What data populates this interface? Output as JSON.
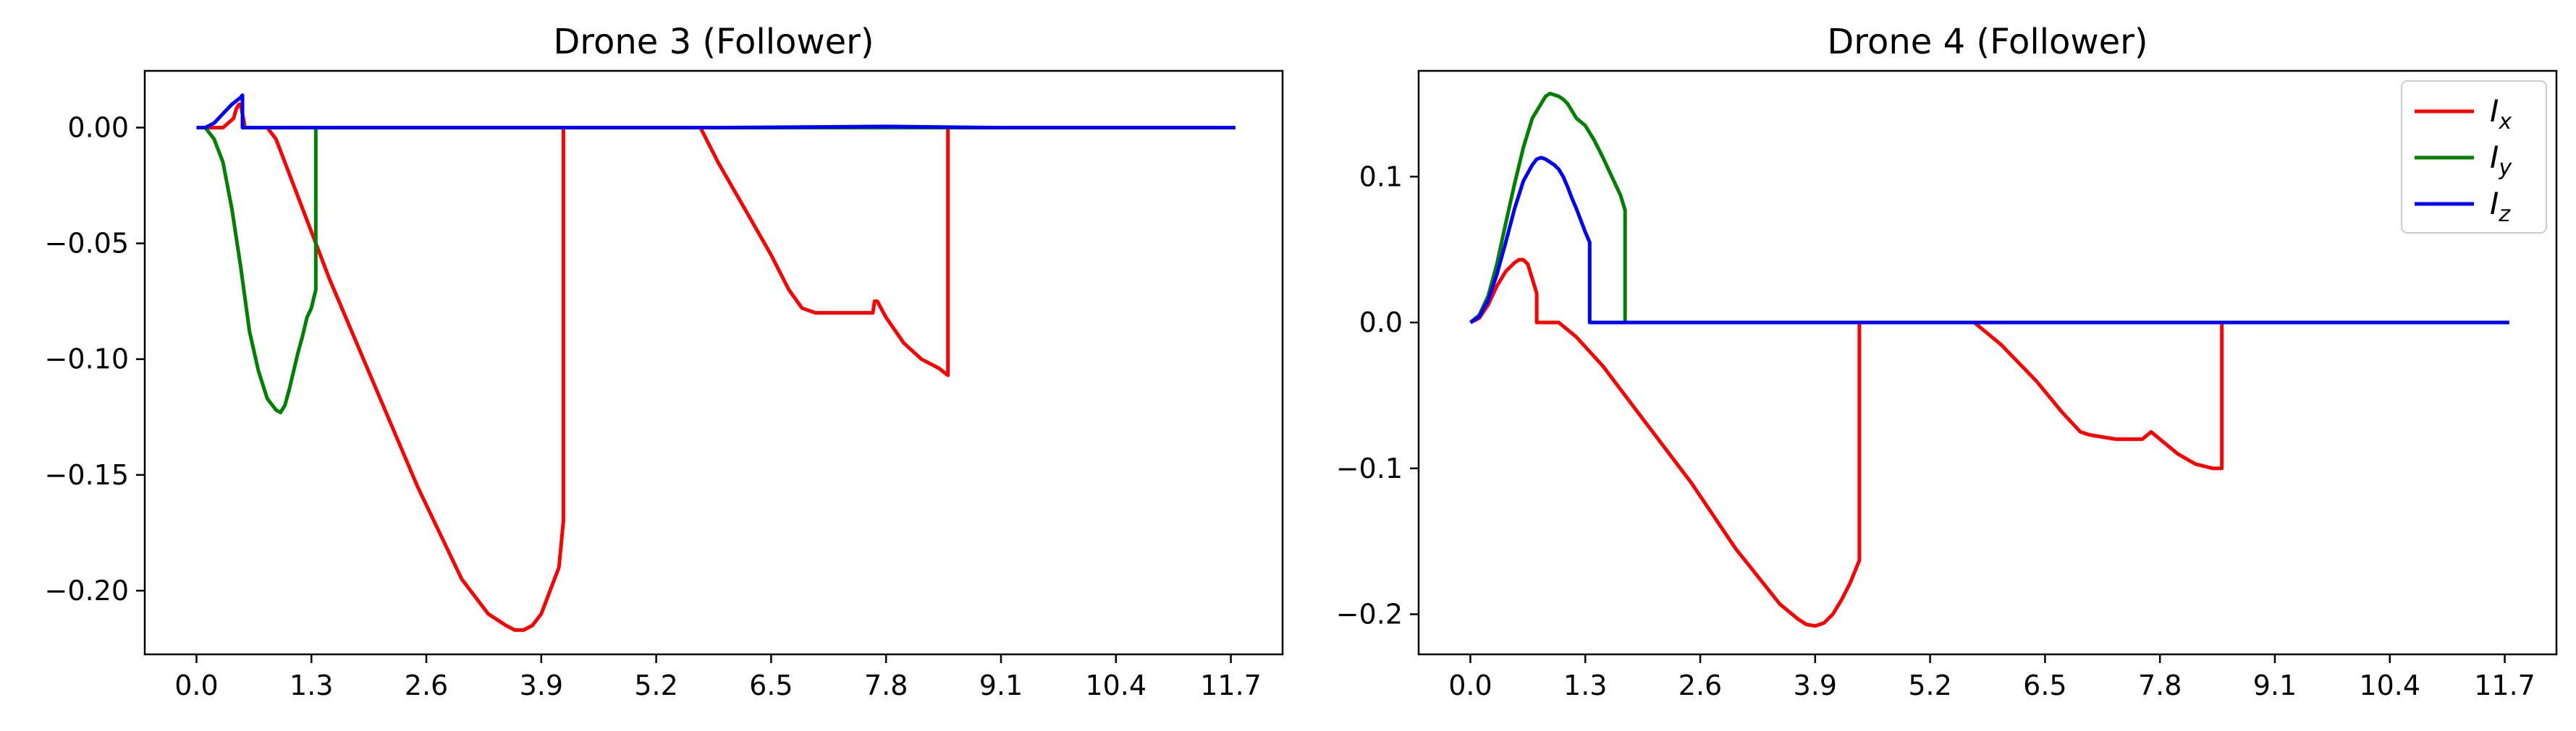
{
  "chart_data": [
    {
      "type": "line",
      "title": "Drone 3 (Follower)",
      "xlabel": "",
      "ylabel": "",
      "xlim": [
        -0.585,
        12.285
      ],
      "ylim": [
        -0.2275,
        0.0245
      ],
      "xticks": [
        0.0,
        1.3,
        2.6,
        3.9,
        5.2,
        6.5,
        7.8,
        9.1,
        10.4,
        11.7
      ],
      "xtick_labels": [
        "0.0",
        "1.3",
        "2.6",
        "3.9",
        "5.2",
        "6.5",
        "7.8",
        "9.1",
        "10.4",
        "11.7"
      ],
      "yticks": [
        0.0,
        -0.05,
        -0.1,
        -0.15,
        -0.2
      ],
      "ytick_labels": [
        "0.00",
        "−0.05",
        "−0.10",
        "−0.15",
        "−0.20"
      ],
      "grid": false,
      "legend": false,
      "series": [
        {
          "color": "#ff0000",
          "x": [
            0,
            0.3,
            0.42,
            0.45,
            0.48,
            0.5,
            0.55,
            0.6,
            0.7,
            0.8,
            0.9,
            1.0,
            1.2,
            1.5,
            2.0,
            2.5,
            3.0,
            3.3,
            3.5,
            3.6,
            3.65,
            3.7,
            3.8,
            3.9,
            4.0,
            4.1,
            4.15,
            4.15,
            4.2,
            5.0,
            5.7,
            5.9,
            6.2,
            6.5,
            6.7,
            6.85,
            7.0,
            7.3,
            7.55,
            7.65,
            7.67,
            7.7,
            7.8,
            8.0,
            8.2,
            8.4,
            8.5,
            8.5,
            9.0,
            10.0,
            11.0,
            11.75
          ],
          "y": [
            0,
            0,
            0.004,
            0.008,
            0.01,
            0.01,
            0,
            0,
            0,
            0,
            -0.005,
            -0.015,
            -0.035,
            -0.065,
            -0.11,
            -0.155,
            -0.195,
            -0.21,
            -0.215,
            -0.217,
            -0.217,
            -0.217,
            -0.215,
            -0.21,
            -0.2,
            -0.19,
            -0.17,
            0,
            0,
            0,
            0,
            -0.015,
            -0.035,
            -0.055,
            -0.07,
            -0.078,
            -0.08,
            -0.08,
            -0.08,
            -0.08,
            -0.075,
            -0.075,
            -0.082,
            -0.093,
            -0.1,
            -0.104,
            -0.107,
            0,
            0,
            0,
            0,
            0
          ]
        },
        {
          "color": "#008000",
          "x": [
            0,
            0.1,
            0.2,
            0.3,
            0.4,
            0.5,
            0.6,
            0.7,
            0.8,
            0.9,
            0.95,
            1.0,
            1.05,
            1.1,
            1.15,
            1.2,
            1.25,
            1.3,
            1.35,
            1.35,
            1.4,
            3.0,
            6.0,
            9.0,
            11.75
          ],
          "y": [
            0,
            0,
            -0.005,
            -0.015,
            -0.035,
            -0.06,
            -0.088,
            -0.105,
            -0.117,
            -0.122,
            -0.123,
            -0.12,
            -0.113,
            -0.105,
            -0.097,
            -0.09,
            -0.082,
            -0.078,
            -0.07,
            0,
            0,
            0,
            0,
            0,
            0
          ]
        },
        {
          "color": "#0000ff",
          "x": [
            0,
            0.1,
            0.2,
            0.3,
            0.4,
            0.5,
            0.52,
            0.52,
            0.6,
            1.0,
            3.0,
            6.0,
            7.8,
            9.0,
            11.75
          ],
          "y": [
            0,
            0,
            0.002,
            0.006,
            0.01,
            0.013,
            0.014,
            0,
            0,
            0,
            0,
            0,
            0.0005,
            0,
            0
          ]
        }
      ]
    },
    {
      "type": "line",
      "title": "Drone 4 (Follower)",
      "xlabel": "",
      "ylabel": "",
      "xlim": [
        -0.585,
        12.285
      ],
      "ylim": [
        -0.2275,
        0.1725
      ],
      "xticks": [
        0.0,
        1.3,
        2.6,
        3.9,
        5.2,
        6.5,
        7.8,
        9.1,
        10.4,
        11.7
      ],
      "xtick_labels": [
        "0.0",
        "1.3",
        "2.6",
        "3.9",
        "5.2",
        "6.5",
        "7.8",
        "9.1",
        "10.4",
        "11.7"
      ],
      "yticks": [
        0.1,
        0.0,
        -0.1,
        -0.2
      ],
      "ytick_labels": [
        "0.1",
        "0.0",
        "−0.1",
        "−0.2"
      ],
      "grid": false,
      "legend": true,
      "legend_position": "top-right",
      "series": [
        {
          "name_main": "I",
          "name_sub": "x",
          "color": "#ff0000",
          "x": [
            0,
            0.1,
            0.2,
            0.3,
            0.4,
            0.5,
            0.55,
            0.6,
            0.65,
            0.7,
            0.75,
            0.75,
            0.8,
            0.9,
            1.0,
            1.1,
            1.2,
            1.5,
            2.0,
            2.5,
            3.0,
            3.5,
            3.7,
            3.8,
            3.9,
            4.0,
            4.1,
            4.2,
            4.3,
            4.4,
            4.4,
            4.5,
            5.0,
            5.7,
            6.0,
            6.4,
            6.7,
            6.9,
            7.0,
            7.3,
            7.6,
            7.7,
            7.8,
            8.0,
            8.2,
            8.4,
            8.5,
            8.5,
            9.0,
            10.0,
            11.0,
            11.75
          ],
          "y": [
            0,
            0.003,
            0.012,
            0.025,
            0.035,
            0.041,
            0.043,
            0.043,
            0.04,
            0.03,
            0.02,
            0,
            0,
            0,
            0,
            -0.005,
            -0.01,
            -0.03,
            -0.07,
            -0.11,
            -0.155,
            -0.193,
            -0.203,
            -0.207,
            -0.208,
            -0.206,
            -0.2,
            -0.19,
            -0.178,
            -0.163,
            0,
            0,
            0,
            0,
            -0.015,
            -0.04,
            -0.062,
            -0.075,
            -0.077,
            -0.08,
            -0.08,
            -0.075,
            -0.08,
            -0.09,
            -0.097,
            -0.1,
            -0.1,
            0,
            0,
            0,
            0,
            0
          ]
        },
        {
          "name_main": "I",
          "name_sub": "y",
          "color": "#008000",
          "x": [
            0,
            0.1,
            0.2,
            0.3,
            0.4,
            0.5,
            0.6,
            0.7,
            0.8,
            0.85,
            0.9,
            0.95,
            1.0,
            1.05,
            1.1,
            1.15,
            1.2,
            1.3,
            1.4,
            1.5,
            1.6,
            1.7,
            1.75,
            1.75,
            1.8,
            3.0,
            6.0,
            9.0,
            11.75
          ],
          "y": [
            0,
            0.005,
            0.018,
            0.04,
            0.068,
            0.095,
            0.12,
            0.14,
            0.15,
            0.155,
            0.157,
            0.156,
            0.155,
            0.153,
            0.15,
            0.145,
            0.14,
            0.135,
            0.125,
            0.113,
            0.1,
            0.087,
            0.077,
            0,
            0,
            0,
            0,
            0,
            0
          ]
        },
        {
          "name_main": "I",
          "name_sub": "z",
          "color": "#0000ff",
          "x": [
            0,
            0.1,
            0.2,
            0.3,
            0.4,
            0.5,
            0.6,
            0.7,
            0.75,
            0.8,
            0.85,
            0.9,
            0.95,
            1.0,
            1.05,
            1.1,
            1.15,
            1.2,
            1.25,
            1.3,
            1.35,
            1.35,
            1.4,
            3.0,
            6.0,
            9.0,
            11.75
          ],
          "y": [
            0,
            0.004,
            0.015,
            0.033,
            0.055,
            0.078,
            0.097,
            0.108,
            0.112,
            0.113,
            0.112,
            0.11,
            0.108,
            0.105,
            0.1,
            0.093,
            0.085,
            0.078,
            0.07,
            0.062,
            0.055,
            0,
            0,
            0,
            0,
            0,
            0
          ]
        }
      ]
    }
  ]
}
